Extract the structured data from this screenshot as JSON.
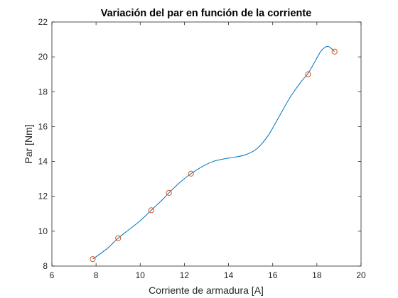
{
  "chart_data": {
    "type": "scatter",
    "title": "Variación del par en función de la corriente",
    "xlabel": "Corriente de armadura [A]",
    "ylabel": "Par [Nm]",
    "xlim": [
      6,
      20
    ],
    "ylim": [
      8,
      22
    ],
    "xticks": [
      6,
      8,
      10,
      12,
      14,
      16,
      18,
      20
    ],
    "yticks": [
      8,
      10,
      12,
      14,
      16,
      18,
      20,
      22
    ],
    "grid": false,
    "box": true,
    "series": [
      {
        "type": "line",
        "color": "#0072BD",
        "x": [
          7.85,
          8.5,
          9.0,
          9.5,
          10.0,
          10.5,
          11.0,
          11.3,
          11.8,
          12.3,
          12.8,
          13.3,
          13.8,
          14.3,
          14.8,
          15.3,
          15.8,
          16.3,
          16.8,
          17.3,
          17.6,
          17.9,
          18.2,
          18.5,
          18.8
        ],
        "y": [
          8.4,
          9.0,
          9.6,
          10.1,
          10.6,
          11.2,
          11.8,
          12.2,
          12.8,
          13.3,
          13.7,
          14.0,
          14.15,
          14.25,
          14.4,
          14.75,
          15.5,
          16.6,
          17.7,
          18.6,
          19.05,
          19.7,
          20.35,
          20.6,
          20.3
        ]
      },
      {
        "type": "scatter",
        "marker": "o",
        "color": "#D95319",
        "x": [
          7.85,
          9.0,
          10.5,
          11.3,
          12.3,
          17.6,
          18.8
        ],
        "y": [
          8.4,
          9.6,
          11.2,
          12.2,
          13.3,
          19.0,
          20.3
        ]
      }
    ]
  }
}
